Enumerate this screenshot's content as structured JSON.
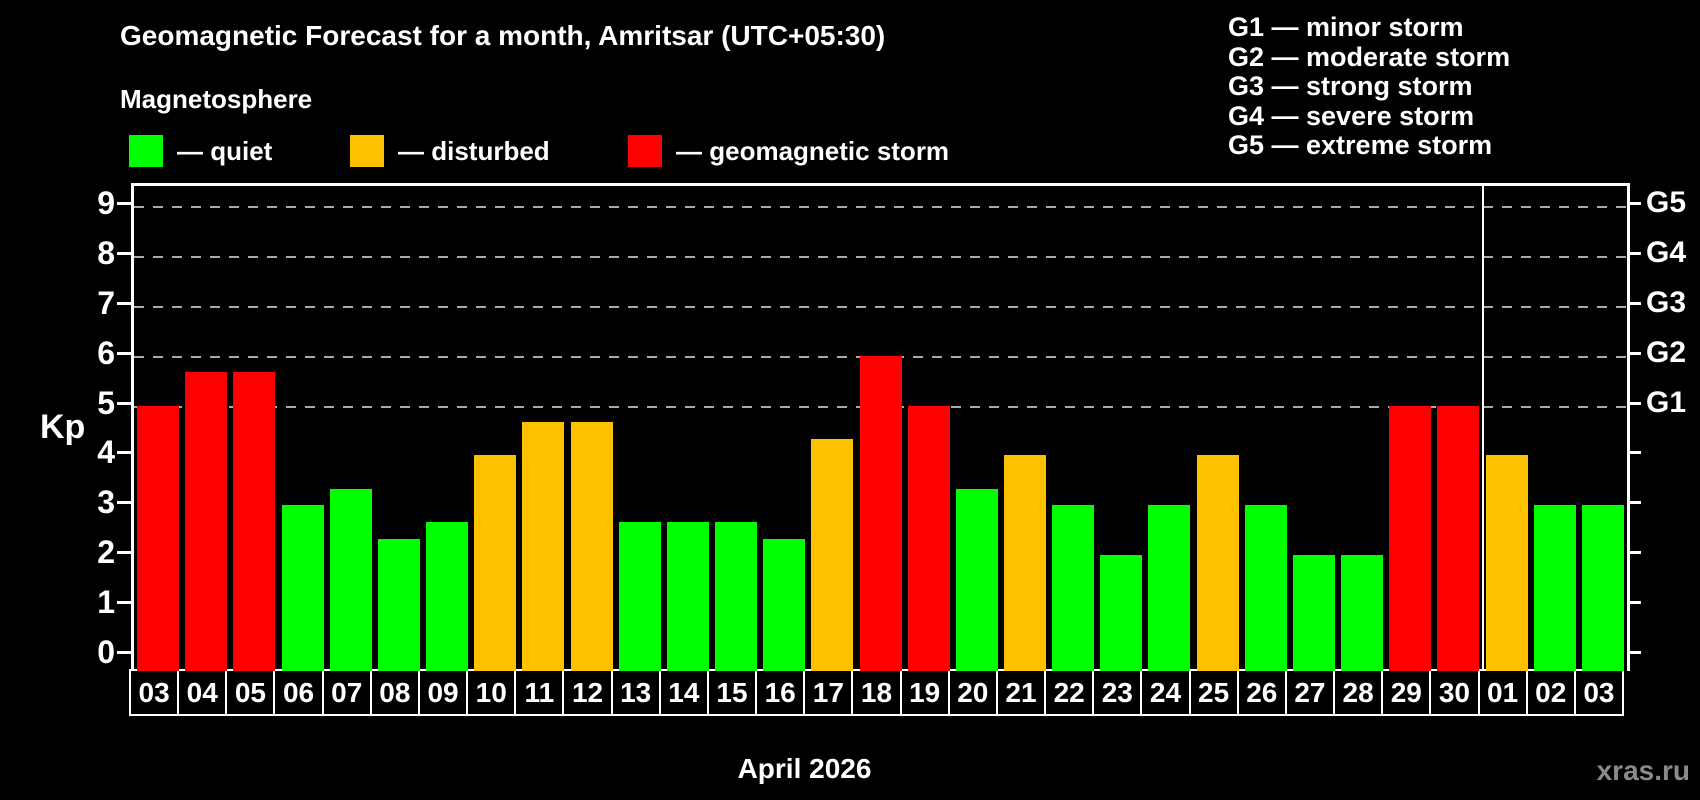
{
  "header": {
    "title": "Geomagnetic Forecast for a month, Amritsar (UTC+05:30)",
    "subtitle": "Magnetosphere"
  },
  "legend": {
    "items": [
      {
        "label": "— quiet",
        "color": "#00ff00",
        "status": "quiet"
      },
      {
        "label": "— disturbed",
        "color": "#ffc000",
        "status": "disturbed"
      },
      {
        "label": "— geomagnetic storm",
        "color": "#ff0000",
        "status": "storm"
      }
    ]
  },
  "g_legend": {
    "lines": [
      "G1 — minor storm",
      "G2 — moderate storm",
      "G3 — strong storm",
      "G4 — severe storm",
      "G5 — extreme storm"
    ]
  },
  "y_axis": {
    "label": "Kp",
    "ticks": [
      0,
      1,
      2,
      3,
      4,
      5,
      6,
      7,
      8,
      9
    ]
  },
  "right_axis": {
    "labels": [
      {
        "kp": 5,
        "text": "G1"
      },
      {
        "kp": 6,
        "text": "G2"
      },
      {
        "kp": 7,
        "text": "G3"
      },
      {
        "kp": 8,
        "text": "G4"
      },
      {
        "kp": 9,
        "text": "G5"
      }
    ]
  },
  "x_axis": {
    "label": "April 2026"
  },
  "watermark": "xras.ru",
  "status_colors": {
    "quiet": "#00ff00",
    "disturbed": "#ffc000",
    "storm": "#ff0000"
  },
  "chart_data": {
    "type": "bar",
    "title": "Geomagnetic Forecast for a month, Amritsar (UTC+05:30)",
    "xlabel": "April 2026",
    "ylabel": "Kp",
    "ylim": [
      0,
      9
    ],
    "gridlines_at": [
      5,
      6,
      7,
      8,
      9
    ],
    "legend_position": "top-left",
    "month_divider_after_index": 27,
    "categories": [
      "03",
      "04",
      "05",
      "06",
      "07",
      "08",
      "09",
      "10",
      "11",
      "12",
      "13",
      "14",
      "15",
      "16",
      "17",
      "18",
      "19",
      "20",
      "21",
      "22",
      "23",
      "24",
      "25",
      "26",
      "27",
      "28",
      "29",
      "30",
      "01",
      "02",
      "03"
    ],
    "values": [
      5.0,
      5.67,
      5.67,
      3.0,
      3.33,
      2.33,
      2.67,
      4.0,
      4.67,
      4.67,
      2.67,
      2.67,
      2.67,
      2.33,
      4.33,
      6.0,
      5.0,
      3.33,
      4.0,
      3.0,
      2.0,
      3.0,
      4.0,
      3.0,
      2.0,
      2.0,
      5.0,
      5.0,
      4.0,
      3.0,
      3.0
    ],
    "statuses": [
      "storm",
      "storm",
      "storm",
      "quiet",
      "quiet",
      "quiet",
      "quiet",
      "disturbed",
      "disturbed",
      "disturbed",
      "quiet",
      "quiet",
      "quiet",
      "quiet",
      "disturbed",
      "storm",
      "storm",
      "quiet",
      "disturbed",
      "quiet",
      "quiet",
      "quiet",
      "disturbed",
      "quiet",
      "quiet",
      "quiet",
      "storm",
      "storm",
      "disturbed",
      "quiet",
      "quiet"
    ]
  }
}
